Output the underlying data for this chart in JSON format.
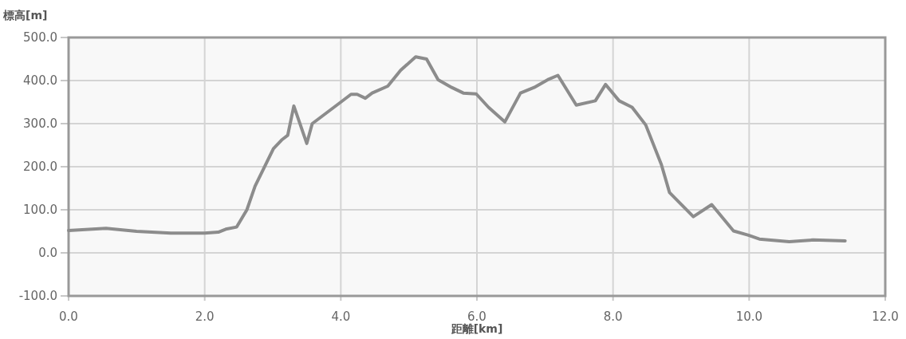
{
  "chart_data": {
    "type": "line",
    "xlabel": "距離[km]",
    "ylabel": "標高[m]",
    "x": [
      0,
      0.55,
      1.0,
      1.5,
      2.0,
      2.2,
      2.31,
      2.47,
      2.62,
      2.74,
      3.01,
      3.13,
      3.22,
      3.31,
      3.5,
      3.58,
      4.0,
      4.15,
      4.24,
      4.36,
      4.46,
      4.69,
      4.88,
      5.1,
      5.26,
      5.43,
      5.63,
      5.8,
      5.99,
      6.17,
      6.41,
      6.64,
      6.84,
      7.04,
      7.19,
      7.46,
      7.74,
      7.89,
      8.09,
      8.28,
      8.48,
      8.71,
      8.83,
      9.18,
      9.45,
      9.77,
      9.99,
      10.15,
      10.59,
      10.94,
      11.41
    ],
    "values": [
      52,
      57,
      50,
      46,
      46,
      48,
      55,
      60,
      100,
      155,
      242,
      262,
      273,
      341,
      254,
      300,
      350,
      368,
      368,
      359,
      371,
      387,
      424,
      455,
      450,
      402,
      384,
      371,
      369,
      338,
      304,
      371,
      384,
      402,
      412,
      343,
      353,
      391,
      353,
      338,
      297,
      205,
      140,
      84,
      112,
      51,
      41,
      32,
      26,
      30,
      28
    ],
    "color": "#8c8c8c",
    "xlim": [
      0,
      12
    ],
    "ylim": [
      -100,
      500
    ],
    "xticks": [
      {
        "value": 0,
        "label": "0.0"
      },
      {
        "value": 2,
        "label": "2.0"
      },
      {
        "value": 4,
        "label": "4.0"
      },
      {
        "value": 6,
        "label": "6.0"
      },
      {
        "value": 8,
        "label": "8.0"
      },
      {
        "value": 10,
        "label": "10.0"
      },
      {
        "value": 12,
        "label": "12.0"
      }
    ],
    "yticks": [
      {
        "value": -100,
        "label": "-100.0"
      },
      {
        "value": 0,
        "label": "0.0"
      },
      {
        "value": 100,
        "label": "100.0"
      },
      {
        "value": 200,
        "label": "200.0"
      },
      {
        "value": 300,
        "label": "300.0"
      },
      {
        "value": 400,
        "label": "400.0"
      },
      {
        "value": 500,
        "label": "500.0"
      }
    ],
    "grid": true
  }
}
